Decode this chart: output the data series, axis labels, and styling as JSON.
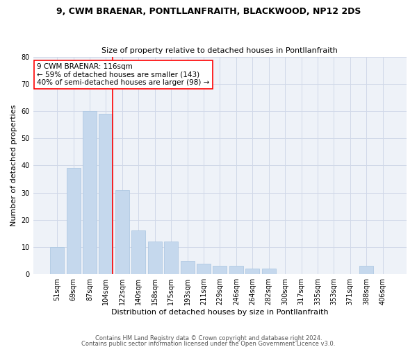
{
  "title1": "9, CWM BRAENAR, PONTLLANFRAITH, BLACKWOOD, NP12 2DS",
  "title2": "Size of property relative to detached houses in Pontllanfraith",
  "xlabel": "Distribution of detached houses by size in Pontllanfraith",
  "ylabel": "Number of detached properties",
  "categories": [
    "51sqm",
    "69sqm",
    "87sqm",
    "104sqm",
    "122sqm",
    "140sqm",
    "158sqm",
    "175sqm",
    "193sqm",
    "211sqm",
    "229sqm",
    "246sqm",
    "264sqm",
    "282sqm",
    "300sqm",
    "317sqm",
    "335sqm",
    "353sqm",
    "371sqm",
    "388sqm",
    "406sqm"
  ],
  "values": [
    10,
    39,
    60,
    59,
    31,
    16,
    12,
    12,
    5,
    4,
    3,
    3,
    2,
    2,
    0,
    0,
    0,
    0,
    0,
    3,
    0
  ],
  "bar_color": "#c5d8ed",
  "bar_edgecolor": "#a8c4e0",
  "ylim": [
    0,
    80
  ],
  "yticks": [
    0,
    10,
    20,
    30,
    40,
    50,
    60,
    70,
    80
  ],
  "grid_color": "#d0d8e8",
  "bg_color": "#eef2f8",
  "annotation_line1": "9 CWM BRAENAR: 116sqm",
  "annotation_line2": "← 59% of detached houses are smaller (143)",
  "annotation_line3": "40% of semi-detached houses are larger (98) →",
  "marker_bin_index": 3,
  "footer1": "Contains HM Land Registry data © Crown copyright and database right 2024.",
  "footer2": "Contains public sector information licensed under the Open Government Licence v3.0."
}
